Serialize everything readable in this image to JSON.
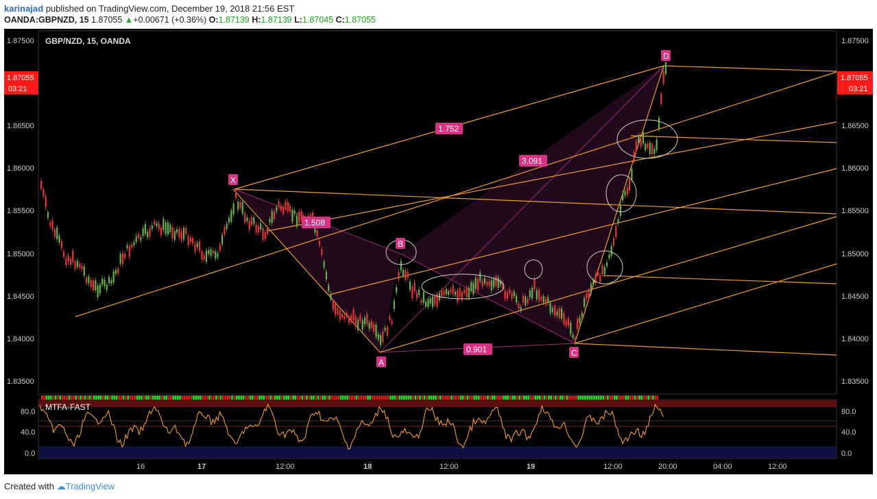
{
  "header": {
    "user": "karinajad",
    "published_text": "published on TradingView.com, December 19, 2018 21:56 EST",
    "symbol": "OANDA:GBPNZD, 15",
    "last": "1.87055",
    "change": "+0.00671 (+0.36%)",
    "open_label": "O:",
    "open": "1.87139",
    "high_label": "H:",
    "high": "1.87139",
    "low_label": "L:",
    "low": "1.87045",
    "close_label": "C:",
    "close": "1.87055"
  },
  "chart": {
    "legend": "GBP/NZD, 15, OANDA",
    "price_ticks": [
      "1.87500",
      "1.86500",
      "1.86000",
      "1.85500",
      "1.85000",
      "1.84500",
      "1.84000",
      "1.83500"
    ],
    "price_badge": "1.87055",
    "countdown": "03:21",
    "time_ticks": [
      "16",
      "17",
      "12:00",
      "18",
      "12:00",
      "19",
      "12:00",
      "20:00",
      "04:00",
      "12:00"
    ],
    "pattern_points": [
      "X",
      "A",
      "B",
      "C",
      "D"
    ],
    "ratios": [
      "1.752",
      "3.091",
      "1.508",
      "0.901"
    ],
    "colors": {
      "background": "#000000",
      "up_candle": "#6ab04c",
      "down_candle": "#e53935",
      "fib_lines": "#f39c34",
      "pattern": "#c2185b",
      "badge": "#ff1a1a"
    }
  },
  "indicator": {
    "name": "MTFA-FAST",
    "ticks": [
      "80.0",
      "40.0",
      "0.0"
    ],
    "right_ticks": [
      "80.0",
      "40.0",
      "0.0"
    ]
  },
  "footer": {
    "created_with": "Created with",
    "brand": "TradingView"
  }
}
